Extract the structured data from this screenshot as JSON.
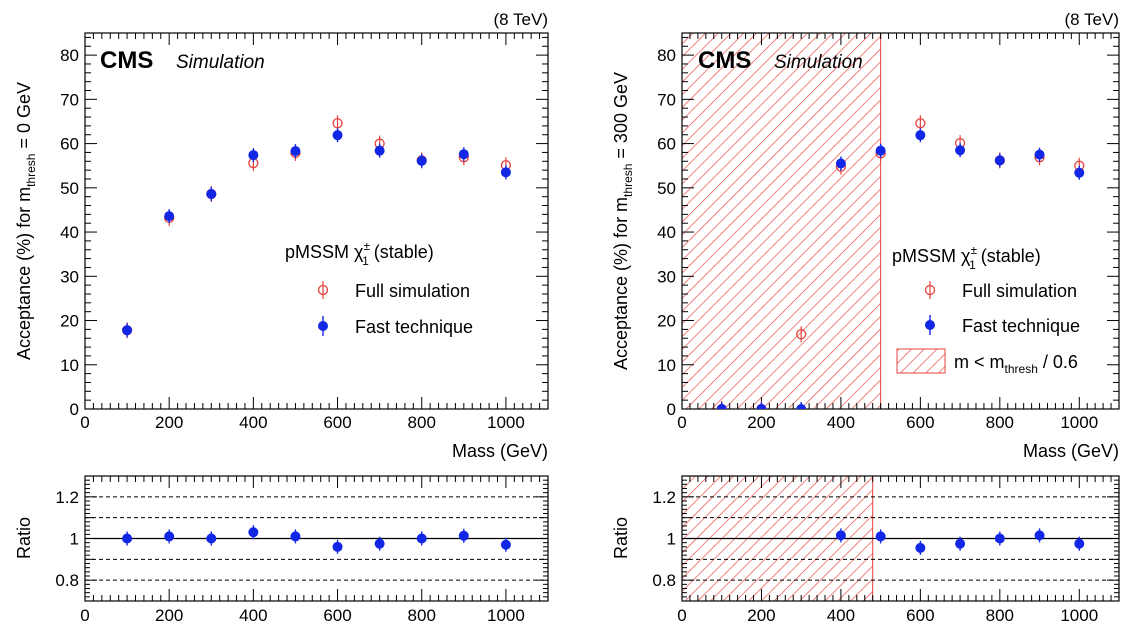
{
  "chart_data": [
    {
      "type": "scatter",
      "energy_label": "(8 TeV)",
      "experiment": "CMS",
      "experiment_tag": "Simulation",
      "xlabel": "Mass (GeV)",
      "ylabel_main": "Acceptance (%) for m",
      "ylabel_sub": "thresh",
      "ylabel_tail": " = 0 GeV",
      "xlim": [
        0,
        1100
      ],
      "ylim": [
        0,
        85
      ],
      "xticks": [
        0,
        200,
        400,
        600,
        800,
        1000
      ],
      "yticks": [
        0,
        10,
        20,
        30,
        40,
        50,
        60,
        70,
        80
      ],
      "legend_title_main": "pMSSM χ",
      "legend_title_sup": "±",
      "legend_title_sub": "1",
      "legend_title_tail": " (stable)",
      "legend_position": "center-right",
      "series": [
        {
          "name": "Full simulation",
          "marker": "open-circle",
          "color": "#e8413c",
          "x": [
            100,
            200,
            300,
            400,
            500,
            600,
            700,
            800,
            900,
            1000
          ],
          "y": [
            17.8,
            43.2,
            48.6,
            55.6,
            57.9,
            64.6,
            60.0,
            56.2,
            56.9,
            55.1
          ]
        },
        {
          "name": "Fast technique",
          "marker": "filled-circle",
          "color": "#1226e6",
          "x": [
            100,
            200,
            300,
            400,
            500,
            600,
            700,
            800,
            900,
            1000
          ],
          "y": [
            17.8,
            43.6,
            48.6,
            57.4,
            58.3,
            61.9,
            58.4,
            56.1,
            57.6,
            53.5
          ]
        }
      ],
      "ratio": {
        "ylabel": "Ratio",
        "ylim": [
          0.7,
          1.3
        ],
        "yticks": [
          "0.8",
          "1",
          "1.2"
        ],
        "ytick_values": [
          0.8,
          1.0,
          1.2
        ],
        "reference_line": 1.0,
        "dashed_lines": [
          0.8,
          0.9,
          1.1,
          1.2
        ],
        "xticks": [
          0,
          200,
          400,
          600,
          800,
          1000
        ],
        "x": [
          100,
          200,
          300,
          400,
          500,
          600,
          700,
          800,
          900,
          1000
        ],
        "y": [
          1.0,
          1.01,
          1.0,
          1.03,
          1.01,
          0.96,
          0.975,
          1.0,
          1.013,
          0.97
        ]
      }
    },
    {
      "type": "scatter",
      "energy_label": "(8 TeV)",
      "experiment": "CMS",
      "experiment_tag": "Simulation",
      "xlabel": "Mass (GeV)",
      "ylabel_main": "Acceptance (%) for m",
      "ylabel_sub": "thresh",
      "ylabel_tail": " = 300 GeV",
      "xlim": [
        0,
        1100
      ],
      "ylim": [
        0,
        85
      ],
      "xticks": [
        0,
        200,
        400,
        600,
        800,
        1000
      ],
      "yticks": [
        0,
        10,
        20,
        30,
        40,
        50,
        60,
        70,
        80
      ],
      "legend_title_main": "pMSSM χ",
      "legend_title_sup": "±",
      "legend_title_sub": "1",
      "legend_title_tail": " (stable)",
      "legend_position": "center-right",
      "excluded_region": {
        "x_max": 500,
        "label_main": "m < m",
        "label_sub": "thresh",
        "label_tail": " / 0.6",
        "color": "#e8413c"
      },
      "series": [
        {
          "name": "Full simulation",
          "marker": "open-circle",
          "color": "#e8413c",
          "x": [
            100,
            200,
            300,
            400,
            500,
            600,
            700,
            800,
            900,
            1000
          ],
          "y": [
            0,
            0,
            16.9,
            54.8,
            57.8,
            64.6,
            60.1,
            56.2,
            56.9,
            55.0
          ]
        },
        {
          "name": "Fast technique",
          "marker": "filled-circle",
          "color": "#1226e6",
          "x": [
            100,
            200,
            300,
            400,
            500,
            600,
            700,
            800,
            900,
            1000
          ],
          "y": [
            0,
            0,
            0,
            55.5,
            58.4,
            61.9,
            58.5,
            56.2,
            57.5,
            53.4
          ]
        }
      ],
      "ratio": {
        "ylabel": "Ratio",
        "ylim": [
          0.7,
          1.3
        ],
        "yticks": [
          "0.8",
          "1",
          "1.2"
        ],
        "ytick_values": [
          0.8,
          1.0,
          1.2
        ],
        "reference_line": 1.0,
        "dashed_lines": [
          0.8,
          0.9,
          1.1,
          1.2
        ],
        "excluded_x_max": 480,
        "xticks": [
          0,
          200,
          400,
          600,
          800,
          1000
        ],
        "x": [
          400,
          500,
          600,
          700,
          800,
          900,
          1000
        ],
        "y": [
          1.015,
          1.01,
          0.955,
          0.975,
          1.0,
          1.015,
          0.975
        ]
      }
    }
  ]
}
